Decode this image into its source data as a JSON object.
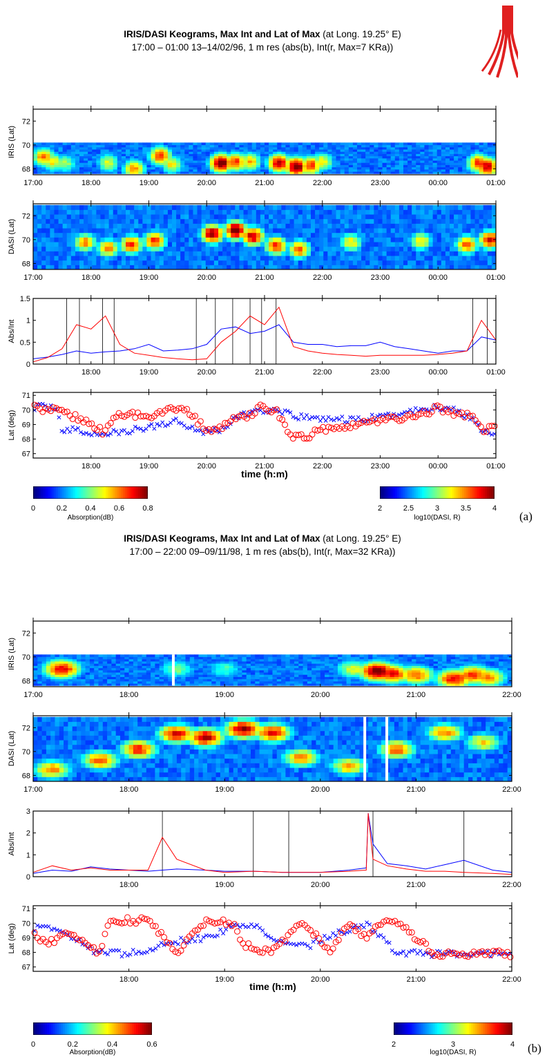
{
  "colors": {
    "abs": "#0000ff",
    "int": "#ff0000",
    "marker": "#000000"
  },
  "figures": [
    {
      "tag": "(a)",
      "title_bold": "IRIS/DASI Keograms, Max Int and Lat of Max",
      "title_rest": " (at Long. 19.25° E)",
      "subtitle": "17:00 – 01:00  13–14/02/96, 1 m res (abs(b), Int(r, Max=7 KRa))",
      "time_xlabel": "time (h:m)",
      "cb_abs": {
        "label": "Absorption(dB)",
        "ticks": [
          "0",
          "0.2",
          "0.4",
          "0.6",
          "0.8"
        ]
      },
      "cb_int": {
        "label": "log10(DASI, R)",
        "ticks": [
          "2",
          "2.5",
          "3",
          "3.5",
          "4"
        ]
      }
    },
    {
      "tag": "(b)",
      "title_bold": "IRIS/DASI Keograms, Max Int and Lat of Max",
      "title_rest": " (at Long. 19.25° E)",
      "subtitle": "17:00 – 22:00  09–09/11/98, 1 m res (abs(b), Int(r, Max=32 KRa))",
      "time_xlabel": "time (h:m)",
      "cb_abs": {
        "label": "Absorption(dB)",
        "ticks": [
          "0",
          "0.2",
          "0.4",
          "0.6"
        ]
      },
      "cb_int": {
        "label": "log10(DASI, R)",
        "ticks": [
          "2",
          "3",
          "4"
        ]
      }
    }
  ],
  "chart_data": [
    {
      "figure": "a",
      "type": "heatmap",
      "ylabel": "IRIS (Lat)",
      "ylim": [
        67.5,
        73
      ],
      "yticks": [
        68,
        70,
        72
      ],
      "xticks": [
        "17:00",
        "18:00",
        "19:00",
        "20:00",
        "21:00",
        "22:00",
        "23:00",
        "00:00",
        "01:00"
      ],
      "data_lat_range": [
        67.6,
        70.2
      ],
      "hot_spots": [
        {
          "t": 0.18,
          "lat": 69,
          "v": 0.7
        },
        {
          "t": 0.33,
          "lat": 68.6,
          "v": 0.6
        },
        {
          "t": 0.55,
          "lat": 68.5,
          "v": 0.5
        },
        {
          "t": 1.3,
          "lat": 68.5,
          "v": 0.55
        },
        {
          "t": 1.75,
          "lat": 68,
          "v": 0.7
        },
        {
          "t": 2.2,
          "lat": 69.1,
          "v": 0.8
        },
        {
          "t": 2.4,
          "lat": 68.4,
          "v": 0.6
        },
        {
          "t": 3.25,
          "lat": 68.5,
          "v": 1.0
        },
        {
          "t": 3.5,
          "lat": 68.6,
          "v": 0.8
        },
        {
          "t": 3.75,
          "lat": 68.6,
          "v": 0.65
        },
        {
          "t": 4.25,
          "lat": 68.5,
          "v": 0.9
        },
        {
          "t": 4.55,
          "lat": 68.2,
          "v": 1.0
        },
        {
          "t": 4.8,
          "lat": 68.3,
          "v": 0.8
        },
        {
          "t": 5.0,
          "lat": 68.6,
          "v": 0.6
        },
        {
          "t": 7.7,
          "lat": 68.5,
          "v": 0.8
        },
        {
          "t": 7.85,
          "lat": 68.2,
          "v": 0.9
        }
      ]
    },
    {
      "figure": "a",
      "type": "heatmap",
      "ylabel": "DASI (Lat)",
      "ylim": [
        67.5,
        73
      ],
      "yticks": [
        68,
        70,
        72
      ],
      "xticks": [
        "17:00",
        "18:00",
        "19:00",
        "20:00",
        "21:00",
        "22:00",
        "23:00",
        "00:00",
        "01:00"
      ],
      "data_lat_range": [
        67.5,
        72.9
      ],
      "hot_spots": [
        {
          "t": 0.9,
          "lat": 69.8,
          "v": 0.7
        },
        {
          "t": 1.3,
          "lat": 69.3,
          "v": 0.7
        },
        {
          "t": 1.7,
          "lat": 69.6,
          "v": 0.8
        },
        {
          "t": 2.1,
          "lat": 69.9,
          "v": 0.8
        },
        {
          "t": 3.1,
          "lat": 70.5,
          "v": 0.95
        },
        {
          "t": 3.5,
          "lat": 70.8,
          "v": 1.0
        },
        {
          "t": 3.8,
          "lat": 70.3,
          "v": 0.9
        },
        {
          "t": 4.2,
          "lat": 69.5,
          "v": 0.8
        },
        {
          "t": 4.6,
          "lat": 69.2,
          "v": 0.75
        },
        {
          "t": 5.5,
          "lat": 69.8,
          "v": 0.6
        },
        {
          "t": 6.7,
          "lat": 69.9,
          "v": 0.6
        },
        {
          "t": 7.5,
          "lat": 69.6,
          "v": 0.75
        },
        {
          "t": 7.9,
          "lat": 70,
          "v": 0.85
        }
      ]
    },
    {
      "figure": "a",
      "type": "line",
      "ylabel": "Abs/Int",
      "ylim": [
        0,
        1.5
      ],
      "yticks": [
        0,
        0.5,
        1,
        1.5
      ],
      "xticks": [
        "18:00",
        "19:00",
        "20:00",
        "21:00",
        "22:00",
        "23:00",
        "00:00",
        "01:00"
      ],
      "x": [
        0,
        0.25,
        0.5,
        0.75,
        1,
        1.25,
        1.5,
        1.75,
        2,
        2.25,
        2.5,
        2.75,
        3,
        3.25,
        3.5,
        3.75,
        4,
        4.25,
        4.5,
        4.75,
        5,
        5.25,
        5.5,
        5.75,
        6,
        6.25,
        6.5,
        6.75,
        7,
        7.25,
        7.5,
        7.75,
        8
      ],
      "series": [
        {
          "values": [
            0.12,
            0.16,
            0.22,
            0.3,
            0.25,
            0.28,
            0.3,
            0.35,
            0.45,
            0.3,
            0.32,
            0.35,
            0.45,
            0.8,
            0.85,
            0.7,
            0.75,
            0.9,
            0.5,
            0.45,
            0.45,
            0.4,
            0.42,
            0.42,
            0.5,
            0.4,
            0.35,
            0.3,
            0.25,
            0.3,
            0.3,
            0.62,
            0.55
          ]
        },
        {
          "values": [
            0.05,
            0.15,
            0.35,
            0.9,
            0.8,
            1.1,
            0.45,
            0.25,
            0.2,
            0.15,
            0.12,
            0.1,
            0.12,
            0.5,
            0.75,
            1.1,
            0.9,
            1.3,
            0.4,
            0.3,
            0.25,
            0.22,
            0.2,
            0.18,
            0.2,
            0.2,
            0.2,
            0.2,
            0.22,
            0.25,
            0.3,
            1.0,
            0.55
          ]
        }
      ],
      "marker_lines": [
        0.58,
        0.8,
        1.2,
        1.4,
        2.82,
        3.15,
        3.45,
        3.75,
        3.95,
        4.2,
        7.6,
        7.85
      ]
    },
    {
      "figure": "a",
      "type": "scatter",
      "ylabel": "Lat (deg)",
      "xlabel": "time (h:m)",
      "ylim": [
        66.7,
        71.2
      ],
      "yticks": [
        67,
        68,
        69,
        70,
        71
      ],
      "xticks": [
        "18:00",
        "19:00",
        "20:00",
        "21:00",
        "22:00",
        "23:00",
        "00:00",
        "01:00"
      ],
      "series": [
        {
          "marker": "x",
          "trace": [
            [
              0,
              70.2
            ],
            [
              0.4,
              70.2
            ],
            [
              0.5,
              68.6
            ],
            [
              0.8,
              68.6
            ],
            [
              1.0,
              68.3
            ],
            [
              1.3,
              68.4
            ],
            [
              1.6,
              68.5
            ],
            [
              2.0,
              68.8
            ],
            [
              2.5,
              69.3
            ],
            [
              2.9,
              68.5
            ],
            [
              3.3,
              68.7
            ],
            [
              3.5,
              69.5
            ],
            [
              3.9,
              70
            ],
            [
              4.3,
              69.8
            ],
            [
              4.6,
              69.5
            ],
            [
              5.0,
              69.4
            ],
            [
              5.5,
              69.3
            ],
            [
              6.0,
              69.5
            ],
            [
              6.5,
              69.9
            ],
            [
              7.0,
              70.2
            ],
            [
              7.3,
              70
            ],
            [
              7.6,
              69.4
            ],
            [
              7.8,
              68.5
            ],
            [
              8,
              68.5
            ]
          ]
        },
        {
          "marker": "o",
          "trace": [
            [
              0,
              70.2
            ],
            [
              0.3,
              70
            ],
            [
              0.5,
              69.8
            ],
            [
              0.8,
              69.4
            ],
            [
              1.0,
              69
            ],
            [
              1.2,
              68.5
            ],
            [
              1.4,
              69.5
            ],
            [
              1.7,
              69.7
            ],
            [
              2.0,
              69.6
            ],
            [
              2.3,
              70
            ],
            [
              2.6,
              70.2
            ],
            [
              2.9,
              69
            ],
            [
              3.1,
              68.4
            ],
            [
              3.4,
              69.3
            ],
            [
              3.7,
              69.5
            ],
            [
              3.9,
              70.2
            ],
            [
              4.2,
              69.9
            ],
            [
              4.5,
              68.1
            ],
            [
              4.7,
              68.1
            ],
            [
              5.0,
              68.7
            ],
            [
              5.3,
              68.9
            ],
            [
              5.6,
              69.0
            ],
            [
              6.0,
              69.3
            ],
            [
              6.5,
              69.5
            ],
            [
              7.0,
              70.1
            ],
            [
              7.3,
              69.8
            ],
            [
              7.6,
              69.5
            ],
            [
              7.8,
              68.5
            ],
            [
              8,
              69
            ]
          ]
        }
      ]
    },
    {
      "figure": "b",
      "type": "heatmap",
      "ylabel": "IRIS (Lat)",
      "ylim": [
        67.5,
        73
      ],
      "yticks": [
        68,
        70,
        72
      ],
      "xticks": [
        "17:00",
        "18:00",
        "19:00",
        "20:00",
        "21:00",
        "22:00"
      ],
      "data_lat_range": [
        67.6,
        70.2
      ],
      "hot_spots": [
        {
          "t": 0.3,
          "lat": 69,
          "v": 0.85
        },
        {
          "t": 1.5,
          "lat": 69,
          "v": 0.45
        },
        {
          "t": 2.0,
          "lat": 69,
          "v": 0.4
        },
        {
          "t": 3.35,
          "lat": 69,
          "v": 0.55
        },
        {
          "t": 3.6,
          "lat": 68.8,
          "v": 1.0
        },
        {
          "t": 3.75,
          "lat": 68.6,
          "v": 0.85
        },
        {
          "t": 4.0,
          "lat": 68.5,
          "v": 0.75
        },
        {
          "t": 4.4,
          "lat": 68.2,
          "v": 0.85
        },
        {
          "t": 4.6,
          "lat": 68.5,
          "v": 0.8
        },
        {
          "t": 4.75,
          "lat": 68.3,
          "v": 0.7
        }
      ]
    },
    {
      "figure": "b",
      "type": "heatmap",
      "ylabel": "DASI (Lat)",
      "ylim": [
        67.5,
        73
      ],
      "yticks": [
        68,
        70,
        72
      ],
      "xticks": [
        "17:00",
        "18:00",
        "19:00",
        "20:00",
        "21:00",
        "22:00"
      ],
      "data_lat_range": [
        67.5,
        72.9
      ],
      "hot_spots": [
        {
          "t": 0.2,
          "lat": 68.5,
          "v": 0.7
        },
        {
          "t": 0.7,
          "lat": 69.3,
          "v": 0.75
        },
        {
          "t": 1.1,
          "lat": 70.2,
          "v": 0.8
        },
        {
          "t": 1.5,
          "lat": 71.5,
          "v": 0.85
        },
        {
          "t": 1.8,
          "lat": 71.2,
          "v": 0.9
        },
        {
          "t": 2.2,
          "lat": 71.9,
          "v": 0.95
        },
        {
          "t": 2.5,
          "lat": 71.6,
          "v": 0.85
        },
        {
          "t": 2.8,
          "lat": 69.5,
          "v": 0.7
        },
        {
          "t": 3.3,
          "lat": 68.8,
          "v": 0.65
        },
        {
          "t": 3.8,
          "lat": 70.2,
          "v": 0.75
        },
        {
          "t": 4.3,
          "lat": 71.6,
          "v": 0.7
        },
        {
          "t": 4.7,
          "lat": 70.8,
          "v": 0.6
        }
      ]
    },
    {
      "figure": "b",
      "type": "line",
      "ylabel": "Abs/Int",
      "ylim": [
        0,
        3
      ],
      "yticks": [
        0,
        1,
        2,
        3
      ],
      "xticks": [
        "18:00",
        "19:00",
        "20:00",
        "21:00",
        "22:00"
      ],
      "x": [
        0,
        0.2,
        0.4,
        0.6,
        0.8,
        1.0,
        1.2,
        1.35,
        1.5,
        1.8,
        2.0,
        2.3,
        2.6,
        3.0,
        3.3,
        3.48,
        3.5,
        3.55,
        3.7,
        3.9,
        4.1,
        4.3,
        4.5,
        4.8,
        5.0
      ],
      "series": [
        {
          "values": [
            0.15,
            0.3,
            0.25,
            0.45,
            0.35,
            0.3,
            0.25,
            0.3,
            0.35,
            0.3,
            0.25,
            0.25,
            0.2,
            0.2,
            0.3,
            0.4,
            2.9,
            1.5,
            0.6,
            0.5,
            0.35,
            0.55,
            0.75,
            0.3,
            0.2
          ]
        },
        {
          "values": [
            0.2,
            0.5,
            0.3,
            0.4,
            0.3,
            0.3,
            0.3,
            1.8,
            0.8,
            0.3,
            0.2,
            0.25,
            0.2,
            0.2,
            0.25,
            0.3,
            2.9,
            0.8,
            0.5,
            0.35,
            0.25,
            0.25,
            0.2,
            0.15,
            0.1
          ]
        }
      ],
      "marker_lines": [
        1.35,
        2.3,
        2.67,
        3.55,
        4.5
      ]
    },
    {
      "figure": "b",
      "type": "scatter",
      "ylabel": "Lat (deg)",
      "xlabel": "time (h:m)",
      "ylim": [
        66.7,
        71.2
      ],
      "yticks": [
        67,
        68,
        69,
        70,
        71
      ],
      "xticks": [
        "18:00",
        "19:00",
        "20:00",
        "21:00",
        "22:00"
      ],
      "series": [
        {
          "marker": "x",
          "trace": [
            [
              0,
              69.7
            ],
            [
              0.2,
              69.7
            ],
            [
              0.4,
              69
            ],
            [
              0.6,
              68.2
            ],
            [
              0.9,
              67.9
            ],
            [
              1.2,
              68
            ],
            [
              1.4,
              68.7
            ],
            [
              1.8,
              69
            ],
            [
              2.1,
              69.8
            ],
            [
              2.3,
              70
            ],
            [
              2.6,
              68.6
            ],
            [
              2.9,
              68.5
            ],
            [
              3.2,
              69.4
            ],
            [
              3.5,
              69.9
            ],
            [
              3.8,
              68.0
            ],
            [
              4.1,
              67.9
            ],
            [
              4.5,
              67.9
            ],
            [
              5.0,
              67.9
            ]
          ]
        },
        {
          "marker": "o",
          "trace": [
            [
              0,
              69.3
            ],
            [
              0.15,
              68.5
            ],
            [
              0.35,
              69.5
            ],
            [
              0.55,
              68.5
            ],
            [
              0.7,
              67.9
            ],
            [
              0.8,
              70.2
            ],
            [
              1.2,
              70.2
            ],
            [
              1.5,
              68
            ],
            [
              1.8,
              70.2
            ],
            [
              2.1,
              70
            ],
            [
              2.2,
              68.5
            ],
            [
              2.5,
              68
            ],
            [
              2.8,
              70.2
            ],
            [
              3.1,
              68.2
            ],
            [
              3.3,
              69.8
            ],
            [
              3.5,
              69
            ],
            [
              3.6,
              70
            ],
            [
              3.8,
              70.1
            ],
            [
              4.2,
              67.9
            ],
            [
              4.5,
              67.9
            ],
            [
              5.0,
              67.9
            ]
          ]
        }
      ]
    }
  ]
}
